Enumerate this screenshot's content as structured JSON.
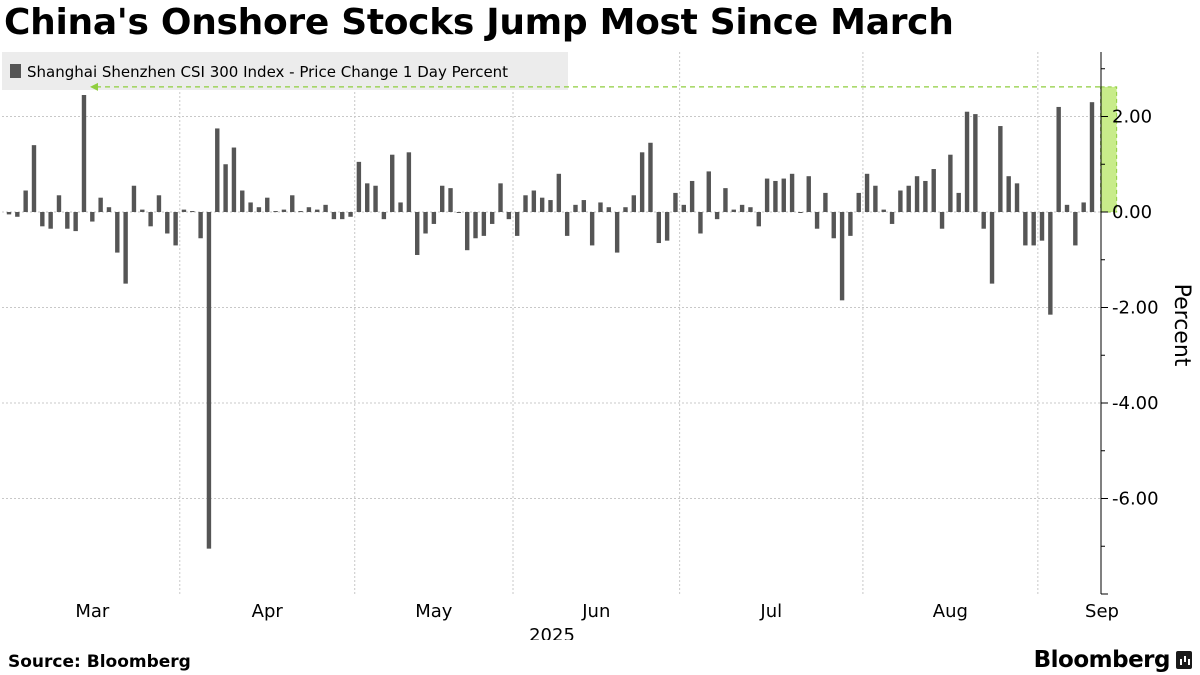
{
  "title": "China's Onshore Stocks Jump Most Since March",
  "source": "Source: Bloomberg",
  "brand": "Bloomberg",
  "colors": {
    "bar": "#555555",
    "highlight_fill": "#c8ec8a",
    "highlight_stroke": "#8fce3e",
    "grid": "#c8c8c8",
    "axis": "#000000"
  },
  "chart_data": {
    "type": "bar",
    "legend": "Shanghai Shenzhen CSI 300 Index - Price Change 1 Day Percent",
    "ylabel": "Percent",
    "xlabel": "2025",
    "ylim": [
      -8.0,
      3.3
    ],
    "yticks": [
      2,
      0,
      -2,
      -4,
      -6
    ],
    "ytick_labels": [
      "2.00",
      "0.00",
      "-2.00",
      "-4.00",
      "-6.00"
    ],
    "month_labels": [
      "Mar",
      "Apr",
      "May",
      "Jun",
      "Jul",
      "Aug",
      "Sep"
    ],
    "month_start_index": [
      0,
      21,
      42,
      61,
      81,
      103,
      124
    ],
    "highlight_index": 132,
    "values": [
      -0.05,
      -0.1,
      0.45,
      1.4,
      -0.3,
      -0.35,
      0.35,
      -0.35,
      -0.4,
      2.45,
      -0.2,
      0.3,
      0.1,
      -0.85,
      -1.5,
      0.55,
      0.05,
      -0.3,
      0.35,
      -0.45,
      -0.7,
      0.05,
      0.02,
      -0.55,
      -7.05,
      1.75,
      1.0,
      1.35,
      0.45,
      0.2,
      0.1,
      0.3,
      0.02,
      0.05,
      0.35,
      0.02,
      0.1,
      0.05,
      0.15,
      -0.15,
      -0.15,
      -0.1,
      1.05,
      0.6,
      0.55,
      -0.15,
      1.2,
      0.2,
      1.25,
      -0.9,
      -0.45,
      -0.25,
      0.55,
      0.5,
      0.0,
      -0.8,
      -0.55,
      -0.5,
      -0.25,
      0.6,
      -0.15,
      -0.5,
      0.35,
      0.45,
      0.3,
      0.25,
      0.8,
      -0.5,
      0.15,
      0.25,
      -0.7,
      0.2,
      0.1,
      -0.85,
      0.1,
      0.35,
      1.25,
      1.45,
      -0.65,
      -0.6,
      0.4,
      0.15,
      0.65,
      -0.45,
      0.85,
      -0.15,
      0.5,
      0.05,
      0.15,
      0.1,
      -0.3,
      0.7,
      0.65,
      0.7,
      0.8,
      0.0,
      0.75,
      -0.35,
      0.4,
      -0.55,
      -1.85,
      -0.5,
      0.4,
      0.8,
      0.55,
      0.05,
      -0.25,
      0.45,
      0.55,
      0.75,
      0.65,
      0.9,
      -0.35,
      1.2,
      0.4,
      2.1,
      2.05,
      -0.35,
      -1.5,
      1.8,
      0.75,
      0.6,
      -0.7,
      -0.7,
      -0.6,
      -2.15,
      2.2,
      0.15,
      -0.7,
      0.2,
      2.3
    ]
  }
}
